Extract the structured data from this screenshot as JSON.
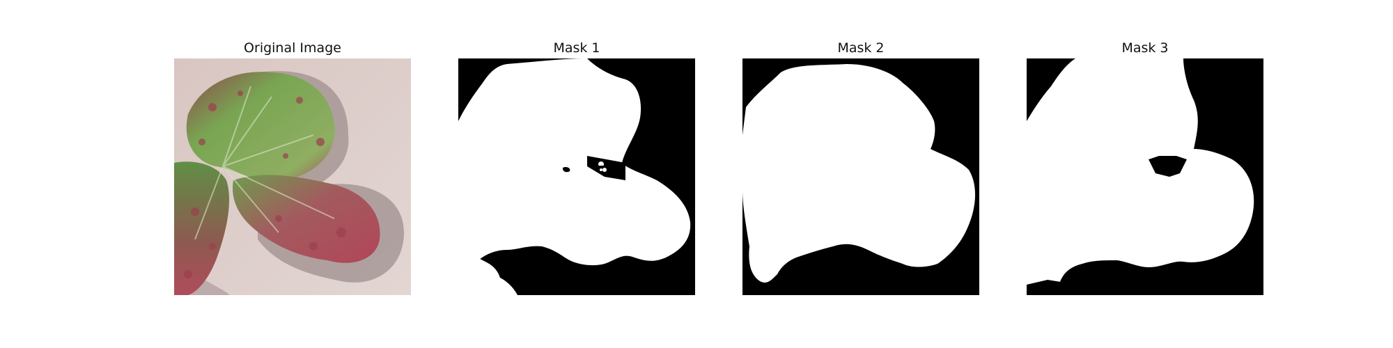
{
  "panels": [
    {
      "title": "Original Image",
      "kind": "photo"
    },
    {
      "title": "Mask 1",
      "kind": "mask"
    },
    {
      "title": "Mask 2",
      "kind": "mask"
    },
    {
      "title": "Mask 3",
      "kind": "mask"
    }
  ],
  "colors": {
    "background": "#ffffff",
    "mask_background": "#000000",
    "mask_foreground": "#ffffff",
    "photo_background": "#d8c9c6",
    "leaf_green": "#6f9a4e",
    "leaf_red": "#a54352",
    "shadow": "#9f8f8e"
  }
}
